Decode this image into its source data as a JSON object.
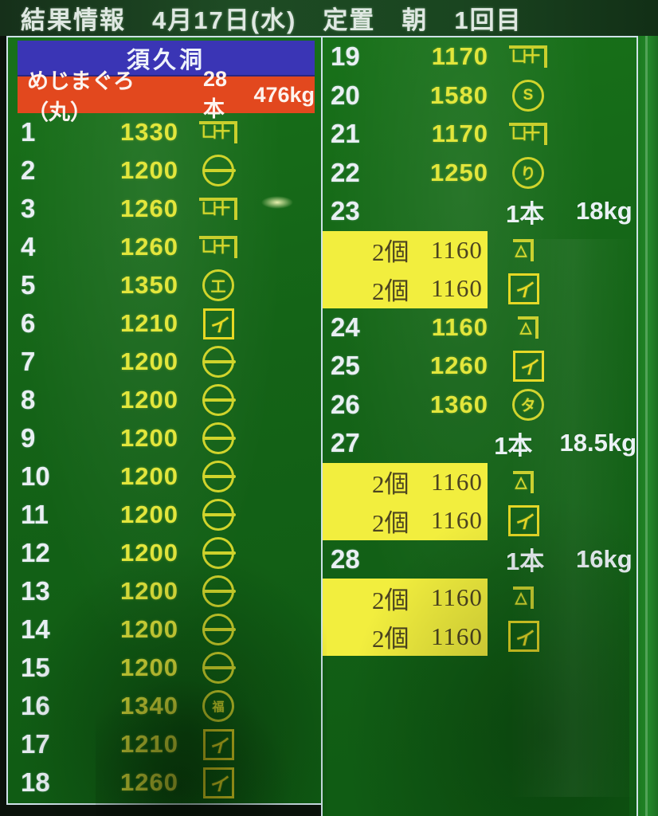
{
  "colors": {
    "board_green": "#146317",
    "header_blue": "#3a35b5",
    "banner_red": "#e2481e",
    "price_yellow": "#e2e63c",
    "number_white": "#e9eff3",
    "highlight_yellow": "#f2ee3e",
    "highlight_text": "#4c4420",
    "mark_yellow": "#d6d82e",
    "border_white": "#cfe2e8"
  },
  "header": {
    "title": "結果情報　4月17日(水)　定置　朝　1回目"
  },
  "panel": {
    "station": "須久洞",
    "banner": {
      "species": "めじまぐろ（丸）",
      "count": "28本",
      "weight": "476kg"
    },
    "marks": {
      "kane_ke": {
        "shape": "kane",
        "glyph": "凵十",
        "name": "kane-ke-buyer-mark"
      },
      "maru_bar": {
        "shape": "circle-bar",
        "glyph": "",
        "name": "circled-bar-buyer-mark"
      },
      "maru_s": {
        "shape": "circle",
        "glyph": "S",
        "name": "circled-s-buyer-mark"
      },
      "maru_ri": {
        "shape": "circle",
        "glyph": "り",
        "name": "circled-ri-buyer-mark"
      },
      "maru_ta": {
        "shape": "circle",
        "glyph": "タ",
        "name": "circled-ta-buyer-mark"
      },
      "maru_ko": {
        "shape": "circle",
        "glyph": "工",
        "name": "circled-ko-buyer-mark"
      },
      "maru_fuku": {
        "shape": "circle",
        "glyph": "福",
        "small": true,
        "name": "circled-fuku-buyer-mark"
      },
      "kaku_i": {
        "shape": "square",
        "glyph": "イ",
        "name": "boxed-i-buyer-mark"
      },
      "kane_tri": {
        "shape": "kane",
        "glyph": "△",
        "name": "kane-triangle-buyer-mark"
      }
    },
    "left_rows": [
      {
        "no": "1",
        "price": "1330",
        "mark": "kane_ke"
      },
      {
        "no": "2",
        "price": "1200",
        "mark": "maru_bar"
      },
      {
        "no": "3",
        "price": "1260",
        "mark": "kane_ke"
      },
      {
        "no": "4",
        "price": "1260",
        "mark": "kane_ke"
      },
      {
        "no": "5",
        "price": "1350",
        "mark": "maru_ko"
      },
      {
        "no": "6",
        "price": "1210",
        "mark": "kaku_i"
      },
      {
        "no": "7",
        "price": "1200",
        "mark": "maru_bar"
      },
      {
        "no": "8",
        "price": "1200",
        "mark": "maru_bar"
      },
      {
        "no": "9",
        "price": "1200",
        "mark": "maru_bar"
      },
      {
        "no": "10",
        "price": "1200",
        "mark": "maru_bar"
      },
      {
        "no": "11",
        "price": "1200",
        "mark": "maru_bar"
      },
      {
        "no": "12",
        "price": "1200",
        "mark": "maru_bar"
      },
      {
        "no": "13",
        "price": "1200",
        "mark": "maru_bar"
      },
      {
        "no": "14",
        "price": "1200",
        "mark": "maru_bar"
      },
      {
        "no": "15",
        "price": "1200",
        "mark": "maru_bar"
      },
      {
        "no": "16",
        "price": "1340",
        "mark": "maru_fuku"
      },
      {
        "no": "17",
        "price": "1210",
        "mark": "kaku_i"
      },
      {
        "no": "18",
        "price": "1260",
        "mark": "kaku_i"
      }
    ],
    "right_rows": [
      {
        "no": "19",
        "price": "1170",
        "mark": "kane_ke"
      },
      {
        "no": "20",
        "price": "1580",
        "mark": "maru_s"
      },
      {
        "no": "21",
        "price": "1170",
        "mark": "kane_ke"
      },
      {
        "no": "22",
        "price": "1250",
        "mark": "maru_ri"
      },
      {
        "no": "23",
        "count": "1本",
        "weight": "18kg"
      },
      {
        "highlight": true,
        "pieces": "2個",
        "price": "1160",
        "mark": "kane_tri"
      },
      {
        "highlight": true,
        "pieces": "2個",
        "price": "1160",
        "mark": "kaku_i"
      },
      {
        "no": "24",
        "price": "1160",
        "mark": "kane_tri"
      },
      {
        "no": "25",
        "price": "1260",
        "mark": "kaku_i"
      },
      {
        "no": "26",
        "price": "1360",
        "mark": "maru_ta"
      },
      {
        "no": "27",
        "count": "1本",
        "weight": "18.5kg"
      },
      {
        "highlight": true,
        "pieces": "2個",
        "price": "1160",
        "mark": "kane_tri"
      },
      {
        "highlight": true,
        "pieces": "2個",
        "price": "1160",
        "mark": "kaku_i"
      },
      {
        "no": "28",
        "count": "1本",
        "weight": "16kg"
      },
      {
        "highlight": true,
        "pieces": "2個",
        "price": "1160",
        "mark": "kane_tri"
      },
      {
        "highlight": true,
        "pieces": "2個",
        "price": "1160",
        "mark": "kaku_i"
      }
    ]
  }
}
